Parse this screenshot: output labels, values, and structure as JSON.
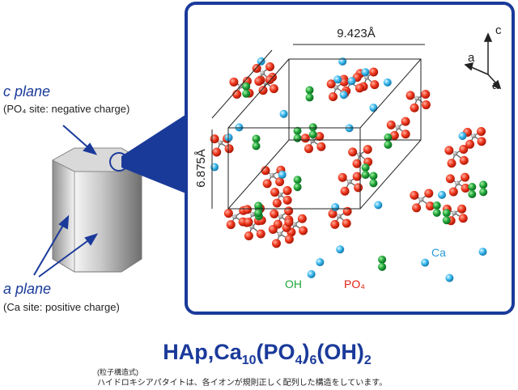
{
  "diagram": {
    "c_plane": {
      "label": "c plane",
      "note": "(PO₄ site: negative charge)"
    },
    "a_plane": {
      "label": "a plane",
      "note": "(Ca site: positive charge)"
    },
    "cell": {
      "width": "9.423Å",
      "height": "6.875Å"
    },
    "axes": {
      "c": "c",
      "a1": "a",
      "a2": "a"
    },
    "legend": {
      "oh": "OH",
      "po4": "PO₄",
      "ca": "Ca"
    }
  },
  "footer": {
    "formula": [
      "HAp,Ca",
      "10",
      "(PO",
      "4",
      ")",
      "6",
      "(OH)",
      "2"
    ],
    "caption_label": "(粒子構造式)",
    "caption": "ハイドロキシアパタイトは、各イオンが規則正しく配列した構造をしています。"
  }
}
